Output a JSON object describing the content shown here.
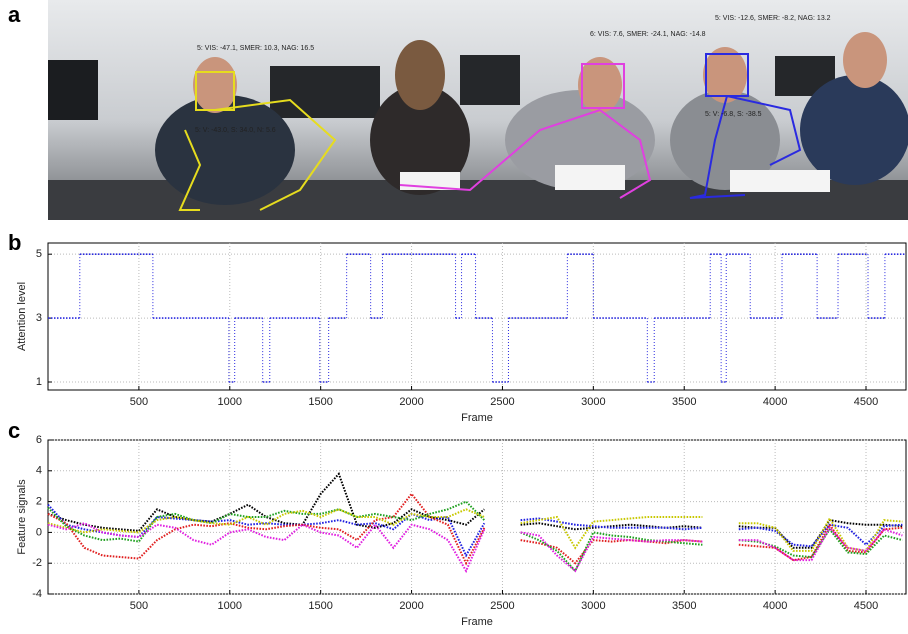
{
  "panel_labels": [
    "a",
    "b",
    "c"
  ],
  "photo": {
    "annotations": [
      {
        "text": "5: VIS: -47.1, SMER: 10.3, NAG: 16.5",
        "color": "#e6dc1e"
      },
      {
        "text": "5: V: -43.0, S: 34.0, N: 5.6",
        "color": "#e6dc1e"
      },
      {
        "text": "6: VIS: 7.6, SMER: -24.1, NAG: -14.8",
        "color": "#e040e0"
      },
      {
        "text": "5: VIS: -12.6, SMER: -8.2, NAG: 13.2",
        "color": "#2a2ae0"
      },
      {
        "text": "5: V: -6.8, S: -38.5",
        "color": "#2a2ae0"
      }
    ]
  },
  "chart_data": [
    {
      "type": "step",
      "xlabel": "Frame",
      "ylabel": "Attention level",
      "color": "#2a2ae0",
      "x": [
        0,
        175,
        577,
        995,
        1027,
        1181,
        1220,
        1495,
        1544,
        1643,
        1775,
        1840,
        2242,
        2275,
        2352,
        2445,
        2533,
        2857,
        3000,
        3297,
        3335,
        3643,
        3703,
        3731,
        3863,
        4038,
        4231,
        4346,
        4511,
        4604
      ],
      "values": [
        3,
        5,
        3,
        1,
        3,
        1,
        3,
        1,
        3,
        5,
        3,
        5,
        3,
        5,
        3,
        1,
        3,
        5,
        3,
        1,
        3,
        5,
        1,
        5,
        3,
        5,
        3,
        5,
        3,
        5
      ],
      "xlim": [
        0,
        4720
      ],
      "ylim": [
        0.75,
        5.35
      ],
      "xticks": [
        500,
        1000,
        1500,
        2000,
        2500,
        3000,
        3500,
        4000,
        4500
      ],
      "yticks": [
        1,
        3,
        5
      ],
      "grid": true
    },
    {
      "type": "line",
      "xlabel": "Frame",
      "ylabel": "Feature signals",
      "x": [
        0,
        100,
        200,
        300,
        400,
        500,
        600,
        700,
        800,
        900,
        1000,
        1100,
        1200,
        1300,
        1400,
        1500,
        1600,
        1700,
        1800,
        1900,
        2000,
        2100,
        2200,
        2300,
        2400,
        2500,
        2600,
        2700,
        2800,
        2900,
        3000,
        3100,
        3200,
        3300,
        3400,
        3500,
        3600,
        3700,
        3800,
        3900,
        4000,
        4100,
        4200,
        4300,
        4400,
        4500,
        4600,
        4700
      ],
      "series": [
        {
          "color": "#000000",
          "values": [
            1.2,
            0.8,
            0.5,
            0.3,
            0.2,
            0.1,
            1.5,
            1.0,
            0.8,
            0.7,
            1.2,
            1.8,
            1.0,
            0.6,
            0.5,
            2.5,
            3.8,
            0.5,
            0.3,
            0.6,
            1.5,
            1.0,
            0.8,
            0.5,
            1.5,
            null,
            0.5,
            0.6,
            0.4,
            0.2,
            0.3,
            0.4,
            0.5,
            0.4,
            0.3,
            0.4,
            0.3,
            null,
            0.4,
            0.3,
            0.3,
            -1.0,
            -1.0,
            0.8,
            0.6,
            0.5,
            0.5,
            0.4
          ]
        },
        {
          "color": "#2020e0",
          "values": [
            1.8,
            0.5,
            0.2,
            0.0,
            -0.2,
            -0.3,
            1.0,
            0.9,
            0.8,
            0.7,
            0.8,
            0.5,
            0.6,
            0.5,
            0.5,
            0.6,
            0.8,
            0.5,
            0.6,
            0.2,
            1.2,
            0.8,
            1.0,
            -1.5,
            0.6,
            null,
            0.8,
            0.9,
            0.7,
            0.5,
            0.4,
            0.3,
            0.3,
            0.3,
            0.3,
            0.2,
            0.3,
            null,
            0.2,
            0.3,
            0.1,
            -0.8,
            -0.9,
            0.5,
            0.3,
            -0.8,
            0.4,
            0.5
          ]
        },
        {
          "color": "#e02020",
          "values": [
            1.2,
            0.6,
            -1.0,
            -1.5,
            -1.6,
            -1.7,
            -0.5,
            0.2,
            0.5,
            0.4,
            0.6,
            0.3,
            0.2,
            0.4,
            0.5,
            0.3,
            0.2,
            -0.5,
            0.8,
            1.0,
            2.5,
            1.0,
            0.5,
            -2.0,
            0.3,
            null,
            -0.5,
            -0.7,
            -1.0,
            -2.0,
            -0.5,
            -0.6,
            -0.5,
            -0.6,
            -0.7,
            -0.5,
            -0.6,
            null,
            -0.8,
            -0.9,
            -1.0,
            -1.8,
            -1.6,
            0.5,
            -1.2,
            -1.3,
            0.2,
            0.3
          ]
        },
        {
          "color": "#20a020",
          "values": [
            1.6,
            0.4,
            -0.2,
            -0.5,
            -0.4,
            -0.6,
            1.0,
            1.2,
            0.8,
            0.6,
            1.2,
            1.0,
            1.0,
            1.4,
            1.2,
            1.2,
            1.5,
            1.0,
            1.2,
            1.0,
            0.8,
            1.2,
            1.5,
            2.0,
            0.8,
            null,
            0.0,
            -0.5,
            -1.2,
            -2.5,
            0.0,
            -0.2,
            -0.3,
            -0.5,
            -0.6,
            -0.7,
            -0.8,
            null,
            -0.5,
            -0.6,
            -0.9,
            -1.5,
            -1.6,
            0.2,
            -1.3,
            -1.4,
            -0.2,
            -0.5
          ]
        },
        {
          "color": "#c8c800",
          "values": [
            0.6,
            0.3,
            0.0,
            0.2,
            0.1,
            0.0,
            0.8,
            1.0,
            0.8,
            0.6,
            0.5,
            1.0,
            0.5,
            1.2,
            1.4,
            1.0,
            1.5,
            1.0,
            1.0,
            0.5,
            1.2,
            1.0,
            1.0,
            1.5,
            1.0,
            null,
            0.6,
            0.8,
            1.0,
            -1.0,
            0.7,
            0.8,
            0.9,
            1.0,
            1.0,
            1.0,
            1.0,
            null,
            0.6,
            0.6,
            0.3,
            -1.2,
            -1.2,
            0.9,
            -1.0,
            -1.2,
            0.8,
            0.7
          ]
        },
        {
          "color": "#e020e0",
          "values": [
            0.5,
            0.2,
            0.6,
            0.0,
            -0.2,
            -0.3,
            0.5,
            0.3,
            -0.5,
            -0.8,
            0.0,
            0.2,
            -0.3,
            -0.5,
            0.5,
            0.0,
            -0.2,
            -1.0,
            0.5,
            -1.0,
            0.5,
            0.2,
            -0.5,
            -2.5,
            0.2,
            null,
            0.0,
            -0.2,
            -1.5,
            -2.5,
            -0.3,
            -0.4,
            -0.5,
            -0.6,
            -0.5,
            -0.5,
            -0.6,
            null,
            -0.5,
            -0.5,
            -1.0,
            -1.8,
            -1.8,
            0.3,
            -1.0,
            -1.2,
            0.2,
            -0.2
          ]
        }
      ],
      "xlim": [
        0,
        4720
      ],
      "ylim": [
        -4,
        6
      ],
      "xticks": [
        500,
        1000,
        1500,
        2000,
        2500,
        3000,
        3500,
        4000,
        4500
      ],
      "yticks": [
        -4,
        -2,
        0,
        2,
        4,
        6
      ],
      "grid": true
    }
  ]
}
